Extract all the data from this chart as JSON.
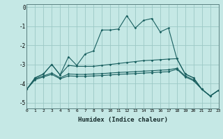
{
  "xlabel": "Humidex (Indice chaleur)",
  "background_color": "#c5e8e5",
  "grid_color": "#9cc8c5",
  "line_color": "#1a6060",
  "xlim": [
    0,
    23
  ],
  "ylim": [
    -5.3,
    0.15
  ],
  "yticks": [
    0,
    -1,
    -2,
    -3,
    -4,
    -5
  ],
  "xticks": [
    0,
    1,
    2,
    3,
    4,
    5,
    6,
    7,
    8,
    9,
    10,
    11,
    12,
    13,
    14,
    15,
    16,
    17,
    18,
    19,
    20,
    21,
    22,
    23
  ],
  "line1_x": [
    0,
    1,
    2,
    3,
    4,
    5,
    6,
    7,
    8,
    9,
    10,
    11,
    12,
    13,
    14,
    15,
    16,
    17,
    18,
    19,
    20,
    21,
    22,
    23
  ],
  "line1_y": [
    -4.3,
    -3.7,
    -3.5,
    -3.0,
    -3.55,
    -2.6,
    -3.05,
    -2.45,
    -2.3,
    -1.2,
    -1.2,
    -1.15,
    -0.45,
    -1.1,
    -0.7,
    -0.6,
    -1.3,
    -1.1,
    -2.7,
    -3.5,
    -3.7,
    -4.3,
    -4.65,
    -4.35
  ],
  "line2_x": [
    0,
    1,
    2,
    3,
    4,
    5,
    6,
    7,
    8,
    9,
    10,
    11,
    12,
    13,
    14,
    15,
    16,
    17,
    18,
    19,
    20,
    21,
    22,
    23
  ],
  "line2_y": [
    -4.3,
    -3.7,
    -3.5,
    -3.0,
    -3.55,
    -3.05,
    -3.1,
    -3.1,
    -3.1,
    -3.05,
    -3.0,
    -2.95,
    -2.9,
    -2.85,
    -2.8,
    -2.78,
    -2.75,
    -2.72,
    -2.7,
    -3.5,
    -3.7,
    -4.3,
    -4.65,
    -4.35
  ],
  "line3_x": [
    0,
    1,
    2,
    3,
    4,
    5,
    6,
    7,
    8,
    9,
    10,
    11,
    12,
    13,
    14,
    15,
    16,
    17,
    18,
    19,
    20,
    21,
    22,
    23
  ],
  "line3_y": [
    -4.3,
    -3.75,
    -3.6,
    -3.45,
    -3.7,
    -3.5,
    -3.52,
    -3.52,
    -3.5,
    -3.48,
    -3.45,
    -3.42,
    -3.4,
    -3.38,
    -3.35,
    -3.33,
    -3.3,
    -3.28,
    -3.2,
    -3.6,
    -3.8,
    -4.3,
    -4.65,
    -4.35
  ],
  "line4_x": [
    0,
    1,
    2,
    3,
    4,
    5,
    6,
    7,
    8,
    9,
    10,
    11,
    12,
    13,
    14,
    15,
    16,
    17,
    18,
    19,
    20,
    21,
    22,
    23
  ],
  "line4_y": [
    -4.3,
    -3.8,
    -3.65,
    -3.52,
    -3.75,
    -3.6,
    -3.62,
    -3.62,
    -3.6,
    -3.58,
    -3.55,
    -3.52,
    -3.5,
    -3.48,
    -3.45,
    -3.43,
    -3.4,
    -3.38,
    -3.25,
    -3.65,
    -3.85,
    -4.3,
    -4.65,
    -4.35
  ]
}
